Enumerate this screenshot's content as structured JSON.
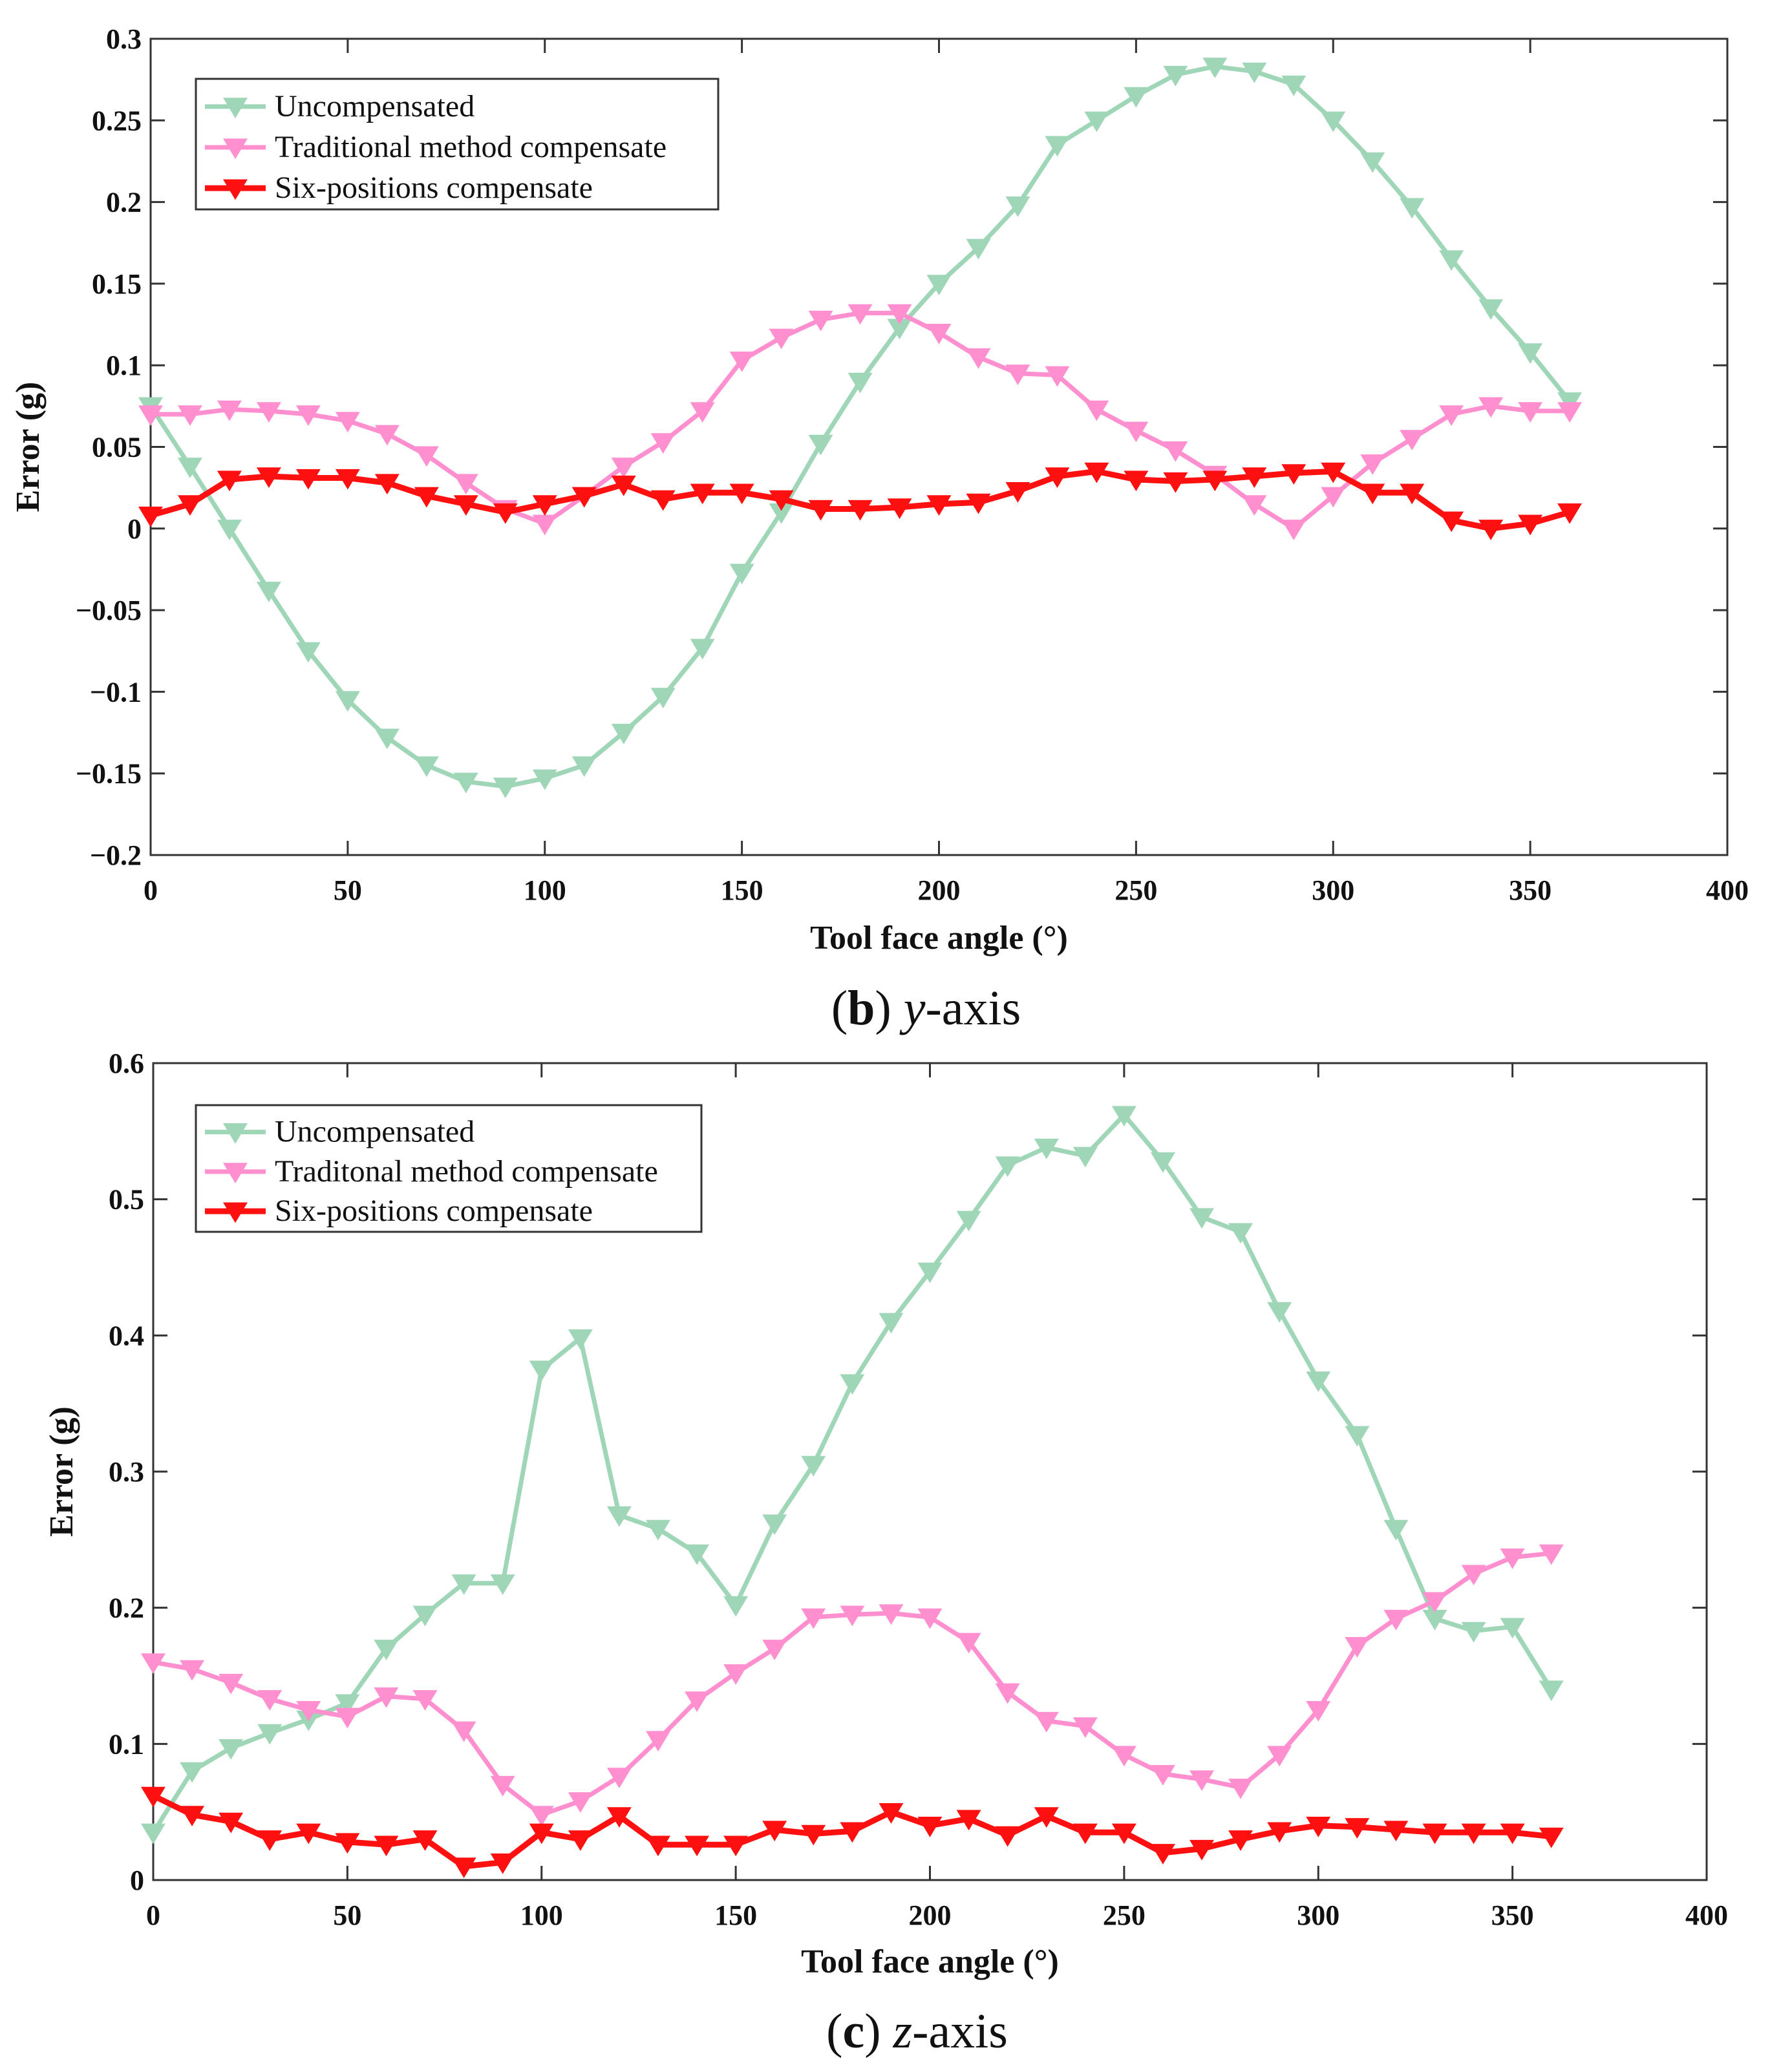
{
  "chart_data": [
    {
      "type": "line",
      "caption": {
        "open": "(",
        "letter": "b",
        "close": ")",
        "axis": "y",
        "suffix": "-axis"
      },
      "xlabel": "Tool face angle (°)",
      "ylabel": "Error (g)",
      "xlim": [
        0,
        400
      ],
      "ylim": [
        -0.2,
        0.3
      ],
      "xticks": [
        0,
        50,
        100,
        150,
        200,
        250,
        300,
        350,
        400
      ],
      "yticks": [
        -0.2,
        -0.15,
        -0.1,
        -0.05,
        0,
        0.05,
        0.1,
        0.15,
        0.2,
        0.25,
        0.3
      ],
      "ytick_labels": [
        "−0.2",
        "−0.15",
        "−0.1",
        "−0.05",
        "0",
        "0.05",
        "0.1",
        "0.15",
        "0.2",
        "0.25",
        "0.3"
      ],
      "xtick_labels": [
        "0",
        "50",
        "100",
        "150",
        "200",
        "250",
        "300",
        "350",
        "400"
      ],
      "legend_position": "top-left",
      "grid": false,
      "x": [
        0,
        10,
        20,
        30,
        40,
        50,
        60,
        70,
        80,
        90,
        100,
        110,
        120,
        130,
        140,
        150,
        160,
        170,
        180,
        190,
        200,
        210,
        220,
        230,
        240,
        250,
        260,
        270,
        280,
        290,
        300,
        310,
        320,
        330,
        340,
        350,
        360
      ],
      "series": [
        {
          "name": "Uncompensated",
          "color": "#9fd6b8",
          "values": [
            0.075,
            0.038,
            0.0,
            -0.038,
            -0.075,
            -0.105,
            -0.128,
            -0.145,
            -0.155,
            -0.158,
            -0.153,
            -0.145,
            -0.125,
            -0.103,
            -0.073,
            -0.027,
            0.01,
            0.052,
            0.09,
            0.123,
            0.15,
            0.172,
            0.198,
            0.235,
            0.25,
            0.265,
            0.278,
            0.283,
            0.28,
            0.272,
            0.25,
            0.225,
            0.197,
            0.165,
            0.135,
            0.108,
            0.078
          ]
        },
        {
          "name": "Traditional method compensate",
          "color": "#ff8fcf",
          "values": [
            0.07,
            0.07,
            0.073,
            0.072,
            0.07,
            0.066,
            0.058,
            0.045,
            0.028,
            0.012,
            0.003,
            0.02,
            0.038,
            0.053,
            0.072,
            0.103,
            0.117,
            0.128,
            0.132,
            0.132,
            0.12,
            0.105,
            0.095,
            0.094,
            0.073,
            0.06,
            0.048,
            0.033,
            0.015,
            0.0,
            0.02,
            0.04,
            0.055,
            0.07,
            0.075,
            0.072,
            0.072
          ]
        },
        {
          "name": "Six-positions compensate",
          "color": "#ff1010",
          "values": [
            0.008,
            0.015,
            0.03,
            0.032,
            0.031,
            0.031,
            0.028,
            0.02,
            0.015,
            0.01,
            0.015,
            0.02,
            0.027,
            0.018,
            0.022,
            0.022,
            0.018,
            0.012,
            0.012,
            0.013,
            0.015,
            0.016,
            0.023,
            0.032,
            0.035,
            0.03,
            0.029,
            0.03,
            0.032,
            0.034,
            0.035,
            0.022,
            0.022,
            0.005,
            0.0,
            0.003,
            0.01
          ]
        }
      ]
    },
    {
      "type": "line",
      "caption": {
        "open": "(",
        "letter": "c",
        "close": ")",
        "axis": "z",
        "suffix": "-axis"
      },
      "xlabel": "Tool face angle (°)",
      "ylabel": "Error (g)",
      "xlim": [
        0,
        400
      ],
      "ylim": [
        0,
        0.6
      ],
      "xticks": [
        0,
        50,
        100,
        150,
        200,
        250,
        300,
        350,
        400
      ],
      "yticks": [
        0,
        0.1,
        0.2,
        0.3,
        0.4,
        0.5,
        0.6
      ],
      "ytick_labels": [
        "0",
        "0.1",
        "0.2",
        "0.3",
        "0.4",
        "0.5",
        "0.6"
      ],
      "xtick_labels": [
        "0",
        "50",
        "100",
        "150",
        "200",
        "250",
        "300",
        "350",
        "400"
      ],
      "legend_position": "top-left",
      "grid": false,
      "x": [
        0,
        10,
        20,
        30,
        40,
        50,
        60,
        70,
        80,
        90,
        100,
        110,
        120,
        130,
        140,
        150,
        160,
        170,
        180,
        190,
        200,
        210,
        220,
        230,
        240,
        250,
        260,
        270,
        280,
        290,
        300,
        310,
        320,
        330,
        340,
        350,
        360
      ],
      "series": [
        {
          "name": "Uncompensated",
          "color": "#9fd6b8",
          "values": [
            0.035,
            0.08,
            0.097,
            0.108,
            0.118,
            0.13,
            0.17,
            0.195,
            0.218,
            0.218,
            0.375,
            0.398,
            0.268,
            0.258,
            0.24,
            0.202,
            0.262,
            0.305,
            0.365,
            0.41,
            0.447,
            0.485,
            0.525,
            0.538,
            0.532,
            0.562,
            0.528,
            0.487,
            0.476,
            0.418,
            0.367,
            0.327,
            0.258,
            0.192,
            0.183,
            0.186,
            0.14
          ]
        },
        {
          "name": "Traditonal method compensate",
          "color": "#ff8fcf",
          "values": [
            0.16,
            0.155,
            0.145,
            0.133,
            0.125,
            0.12,
            0.135,
            0.133,
            0.11,
            0.07,
            0.048,
            0.058,
            0.076,
            0.103,
            0.132,
            0.152,
            0.17,
            0.193,
            0.195,
            0.196,
            0.193,
            0.175,
            0.138,
            0.117,
            0.113,
            0.092,
            0.078,
            0.074,
            0.068,
            0.092,
            0.125,
            0.172,
            0.192,
            0.205,
            0.225,
            0.237,
            0.24
          ]
        },
        {
          "name": "Six-positions compensate",
          "color": "#ff1010",
          "values": [
            0.062,
            0.048,
            0.043,
            0.03,
            0.035,
            0.028,
            0.026,
            0.03,
            0.01,
            0.013,
            0.035,
            0.03,
            0.047,
            0.026,
            0.026,
            0.026,
            0.037,
            0.034,
            0.036,
            0.05,
            0.04,
            0.045,
            0.033,
            0.047,
            0.035,
            0.035,
            0.02,
            0.023,
            0.03,
            0.036,
            0.04,
            0.039,
            0.037,
            0.035,
            0.035,
            0.035,
            0.032
          ]
        }
      ]
    }
  ]
}
